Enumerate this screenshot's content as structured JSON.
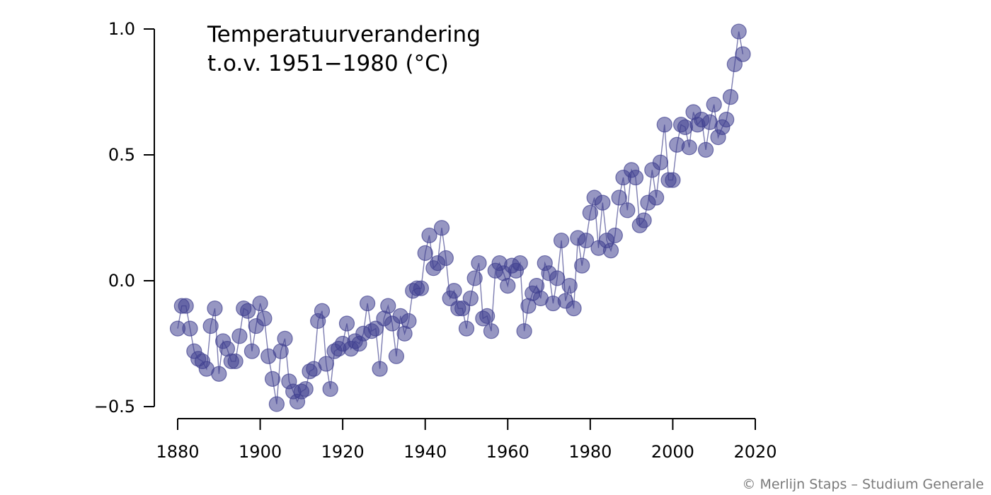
{
  "chart_data": {
    "type": "scatter",
    "title_lines": [
      "Temperatuurverandering",
      "t.o.v. 1951−1980 (°C)"
    ],
    "xlabel": "",
    "ylabel": "",
    "xlim": [
      1880,
      2020
    ],
    "ylim": [
      -0.5,
      1.0
    ],
    "xticks": [
      1880,
      1900,
      1920,
      1940,
      1960,
      1980,
      2000,
      2020
    ],
    "xtick_labels": [
      "1880",
      "1900",
      "1920",
      "1940",
      "1960",
      "1980",
      "2000",
      "2020"
    ],
    "yticks": [
      -0.5,
      0.0,
      0.5,
      1.0
    ],
    "ytick_labels": [
      "−0.5",
      "0.0",
      "0.5",
      "1.0"
    ],
    "grid": false,
    "connected": true,
    "marker_color": "#3f3f8f",
    "line_color": "#6f6fa8",
    "x": [
      1880,
      1881,
      1882,
      1883,
      1884,
      1885,
      1886,
      1887,
      1888,
      1889,
      1890,
      1891,
      1892,
      1893,
      1894,
      1895,
      1896,
      1897,
      1898,
      1899,
      1900,
      1901,
      1902,
      1903,
      1904,
      1905,
      1906,
      1907,
      1908,
      1909,
      1910,
      1911,
      1912,
      1913,
      1914,
      1915,
      1916,
      1917,
      1918,
      1919,
      1920,
      1921,
      1922,
      1923,
      1924,
      1925,
      1926,
      1927,
      1928,
      1929,
      1930,
      1931,
      1932,
      1933,
      1934,
      1935,
      1936,
      1937,
      1938,
      1939,
      1940,
      1941,
      1942,
      1943,
      1944,
      1945,
      1946,
      1947,
      1948,
      1949,
      1950,
      1951,
      1952,
      1953,
      1954,
      1955,
      1956,
      1957,
      1958,
      1959,
      1960,
      1961,
      1962,
      1963,
      1964,
      1965,
      1966,
      1967,
      1968,
      1969,
      1970,
      1971,
      1972,
      1973,
      1974,
      1975,
      1976,
      1977,
      1978,
      1979,
      1980,
      1981,
      1982,
      1983,
      1984,
      1985,
      1986,
      1987,
      1988,
      1989,
      1990,
      1991,
      1992,
      1993,
      1994,
      1995,
      1996,
      1997,
      1998,
      1999,
      2000,
      2001,
      2002,
      2003,
      2004,
      2005,
      2006,
      2007,
      2008,
      2009,
      2010,
      2011,
      2012,
      2013,
      2014,
      2015,
      2016,
      2017
    ],
    "y": [
      -0.19,
      -0.1,
      -0.1,
      -0.19,
      -0.28,
      -0.31,
      -0.32,
      -0.35,
      -0.18,
      -0.11,
      -0.37,
      -0.24,
      -0.27,
      -0.32,
      -0.32,
      -0.22,
      -0.11,
      -0.12,
      -0.28,
      -0.18,
      -0.09,
      -0.15,
      -0.3,
      -0.39,
      -0.49,
      -0.28,
      -0.23,
      -0.4,
      -0.44,
      -0.48,
      -0.44,
      -0.43,
      -0.36,
      -0.35,
      -0.16,
      -0.12,
      -0.33,
      -0.43,
      -0.28,
      -0.27,
      -0.25,
      -0.17,
      -0.27,
      -0.24,
      -0.25,
      -0.21,
      -0.09,
      -0.2,
      -0.19,
      -0.35,
      -0.15,
      -0.1,
      -0.17,
      -0.3,
      -0.14,
      -0.21,
      -0.16,
      -0.04,
      -0.03,
      -0.03,
      0.11,
      0.18,
      0.05,
      0.07,
      0.21,
      0.09,
      -0.07,
      -0.04,
      -0.11,
      -0.11,
      -0.19,
      -0.07,
      0.01,
      0.07,
      -0.15,
      -0.14,
      -0.2,
      0.04,
      0.07,
      0.03,
      -0.02,
      0.06,
      0.04,
      0.07,
      -0.2,
      -0.1,
      -0.05,
      -0.02,
      -0.07,
      0.07,
      0.03,
      -0.09,
      0.01,
      0.16,
      -0.08,
      -0.02,
      -0.11,
      0.17,
      0.06,
      0.16,
      0.27,
      0.33,
      0.13,
      0.31,
      0.16,
      0.12,
      0.18,
      0.33,
      0.41,
      0.28,
      0.44,
      0.41,
      0.22,
      0.24,
      0.31,
      0.44,
      0.33,
      0.47,
      0.62,
      0.4,
      0.4,
      0.54,
      0.62,
      0.61,
      0.53,
      0.67,
      0.62,
      0.64,
      0.52,
      0.63,
      0.7,
      0.57,
      0.61,
      0.64,
      0.73,
      0.86,
      0.99,
      0.9
    ]
  },
  "credit": "© Merlijn Staps – Studium Generale"
}
